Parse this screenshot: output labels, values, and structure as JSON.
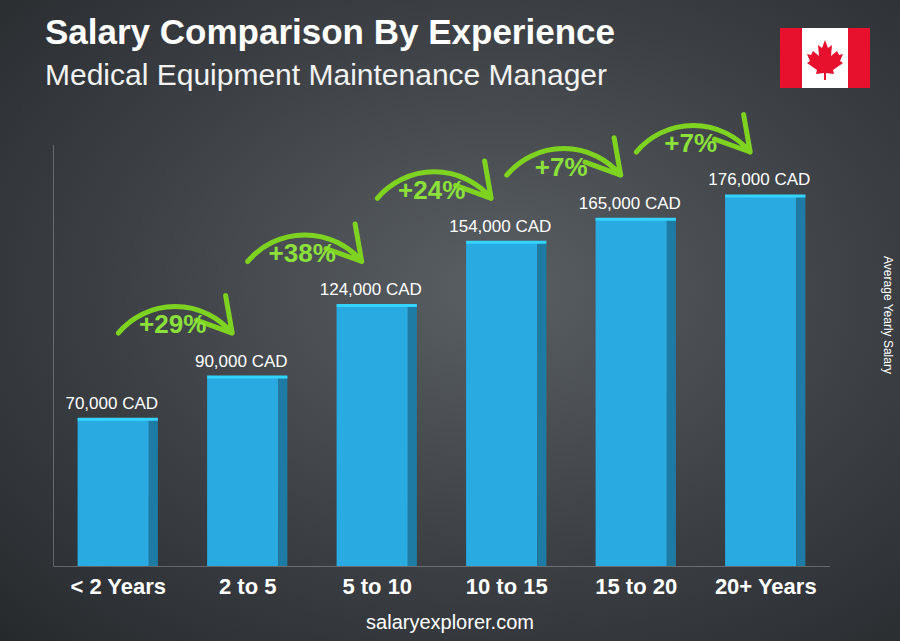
{
  "chart_data": {
    "type": "bar",
    "title": "Salary Comparison By Experience",
    "subtitle": "Medical Equipment Maintenance Manager",
    "y_label": "Average Yearly Salary",
    "source": "salaryexplorer.com",
    "categories": [
      "< 2 Years",
      "2 to 5",
      "5 to 10",
      "10 to 15",
      "15 to 20",
      "20+ Years"
    ],
    "values": [
      70000,
      90000,
      124000,
      154000,
      165000,
      176000
    ],
    "value_labels": [
      "70,000 CAD",
      "90,000 CAD",
      "124,000 CAD",
      "154,000 CAD",
      "165,000 CAD",
      "176,000 CAD"
    ],
    "data_labels": true,
    "color": "#29abe2",
    "ylim": [
      0,
      200000
    ],
    "yticks": [],
    "tick_labels": "x",
    "grid": false,
    "annotations": [
      "+29%",
      "+38%",
      "+24%",
      "+7%",
      "+7%"
    ]
  }
}
